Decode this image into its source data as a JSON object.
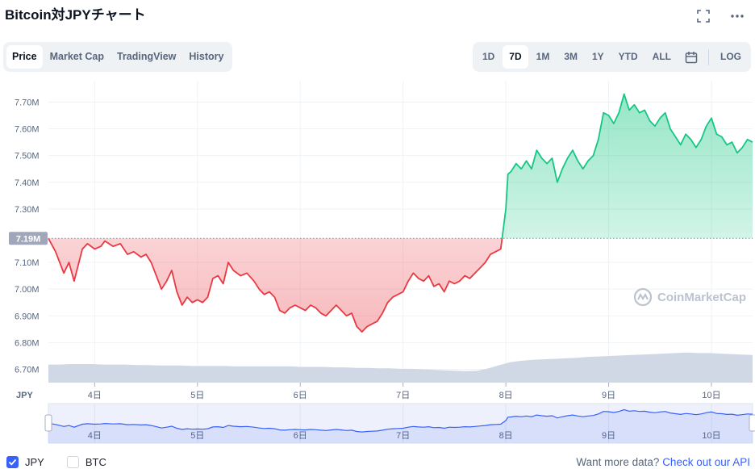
{
  "title": "Bitcoin対JPYチャート",
  "tabs": [
    {
      "label": "Price",
      "active": true
    },
    {
      "label": "Market Cap",
      "active": false
    },
    {
      "label": "TradingView",
      "active": false
    },
    {
      "label": "History",
      "active": false
    }
  ],
  "ranges": [
    {
      "label": "1D",
      "active": false
    },
    {
      "label": "7D",
      "active": true
    },
    {
      "label": "1M",
      "active": false
    },
    {
      "label": "3M",
      "active": false
    },
    {
      "label": "1Y",
      "active": false
    },
    {
      "label": "YTD",
      "active": false
    },
    {
      "label": "ALL",
      "active": false
    }
  ],
  "log_label": "LOG",
  "watermark": "CoinMarketCap",
  "footer": {
    "jpy_label": "JPY",
    "btc_label": "BTC",
    "api_text": "Want more data?",
    "api_link": "Check out our API"
  },
  "colors": {
    "up": "#16c784",
    "down": "#ea3943",
    "volume": "#cfd6e4",
    "nav_line": "#3861fb"
  },
  "chart_data": {
    "type": "line",
    "currency_label": "JPY",
    "baseline": 7.19,
    "baseline_label": "7.19M",
    "ylim": [
      6.65,
      7.78
    ],
    "y_ticks": [
      "7.70M",
      "7.60M",
      "7.50M",
      "7.40M",
      "7.30M",
      "7.10M",
      "7.00M",
      "6.90M",
      "6.80M",
      "6.70M"
    ],
    "y_tick_values": [
      7.7,
      7.6,
      7.5,
      7.4,
      7.3,
      7.1,
      7.0,
      6.9,
      6.8,
      6.7
    ],
    "xlim": [
      3.55,
      10.4
    ],
    "x_ticks": [
      "4日",
      "5日",
      "6日",
      "7日",
      "8日",
      "9日",
      "10日"
    ],
    "x_tick_values": [
      4,
      5,
      6,
      7,
      8,
      9,
      10
    ],
    "grid": true,
    "series": [
      {
        "x": [
          3.55,
          3.62,
          3.7,
          3.75,
          3.8,
          3.88,
          3.93,
          4.0,
          4.06,
          4.1,
          4.18,
          4.25,
          4.32,
          4.38,
          4.45,
          4.5,
          4.55,
          4.6,
          4.65,
          4.7,
          4.75,
          4.8,
          4.85,
          4.9,
          4.95,
          5.0,
          5.05,
          5.1,
          5.15,
          5.2,
          5.25,
          5.3,
          5.35,
          5.42,
          5.48,
          5.55,
          5.6,
          5.65,
          5.7,
          5.75,
          5.8,
          5.85,
          5.9,
          5.95,
          6.0,
          6.05,
          6.1,
          6.15,
          6.2,
          6.25,
          6.3,
          6.35,
          6.4,
          6.45,
          6.5,
          6.55,
          6.6,
          6.65,
          6.7,
          6.75,
          6.8,
          6.85,
          6.9,
          6.95,
          7.0,
          7.05,
          7.1,
          7.15,
          7.2,
          7.25,
          7.3,
          7.35,
          7.4,
          7.45,
          7.5,
          7.55,
          7.6,
          7.65,
          7.7,
          7.75,
          7.8,
          7.85,
          7.9,
          7.95,
          8.0,
          8.02,
          8.05,
          8.1,
          8.15,
          8.2,
          8.25,
          8.3,
          8.35,
          8.4,
          8.45,
          8.5,
          8.55,
          8.6,
          8.65,
          8.7,
          8.75,
          8.8,
          8.85,
          8.9,
          8.95,
          9.0,
          9.05,
          9.1,
          9.15,
          9.2,
          9.25,
          9.3,
          9.35,
          9.4,
          9.45,
          9.5,
          9.55,
          9.6,
          9.65,
          9.7,
          9.75,
          9.8,
          9.85,
          9.9,
          9.95,
          10.0,
          10.05,
          10.1,
          10.15,
          10.2,
          10.25,
          10.3,
          10.35,
          10.4
        ],
        "values": [
          7.19,
          7.14,
          7.06,
          7.1,
          7.03,
          7.15,
          7.17,
          7.15,
          7.16,
          7.18,
          7.16,
          7.17,
          7.13,
          7.14,
          7.12,
          7.13,
          7.1,
          7.05,
          7.0,
          7.03,
          7.07,
          6.99,
          6.94,
          6.97,
          6.95,
          6.96,
          6.95,
          6.97,
          7.04,
          7.05,
          7.02,
          7.1,
          7.07,
          7.05,
          7.06,
          7.03,
          7.0,
          6.98,
          6.99,
          6.97,
          6.92,
          6.91,
          6.93,
          6.94,
          6.93,
          6.92,
          6.94,
          6.93,
          6.91,
          6.9,
          6.92,
          6.94,
          6.92,
          6.9,
          6.91,
          6.86,
          6.84,
          6.86,
          6.87,
          6.88,
          6.91,
          6.95,
          6.97,
          6.98,
          6.99,
          7.03,
          7.06,
          7.04,
          7.03,
          7.05,
          7.01,
          7.02,
          6.99,
          7.03,
          7.02,
          7.03,
          7.05,
          7.04,
          7.06,
          7.08,
          7.1,
          7.13,
          7.14,
          7.15,
          7.3,
          7.43,
          7.44,
          7.47,
          7.45,
          7.48,
          7.45,
          7.52,
          7.49,
          7.47,
          7.49,
          7.4,
          7.45,
          7.49,
          7.52,
          7.48,
          7.45,
          7.48,
          7.5,
          7.56,
          7.66,
          7.65,
          7.62,
          7.66,
          7.73,
          7.67,
          7.69,
          7.66,
          7.67,
          7.63,
          7.61,
          7.64,
          7.66,
          7.6,
          7.57,
          7.54,
          7.58,
          7.56,
          7.53,
          7.56,
          7.61,
          7.64,
          7.58,
          7.57,
          7.54,
          7.55,
          7.51,
          7.53,
          7.56,
          7.55
        ]
      }
    ],
    "volume": [
      0.38,
      0.38,
      0.39,
      0.39,
      0.39,
      0.38,
      0.38,
      0.38,
      0.37,
      0.37,
      0.36,
      0.36,
      0.36,
      0.35,
      0.35,
      0.35,
      0.35,
      0.34,
      0.34,
      0.34,
      0.34,
      0.34,
      0.34,
      0.33,
      0.33,
      0.33,
      0.32,
      0.32,
      0.31,
      0.31,
      0.3,
      0.3,
      0.29,
      0.29,
      0.28,
      0.27,
      0.26,
      0.25,
      0.24,
      0.25,
      0.3,
      0.37,
      0.43,
      0.46,
      0.48,
      0.49,
      0.5,
      0.51,
      0.52,
      0.54,
      0.55,
      0.56,
      0.57,
      0.58,
      0.59,
      0.6,
      0.61,
      0.62,
      0.63,
      0.62,
      0.62,
      0.61,
      0.6,
      0.59,
      0.58
    ]
  }
}
